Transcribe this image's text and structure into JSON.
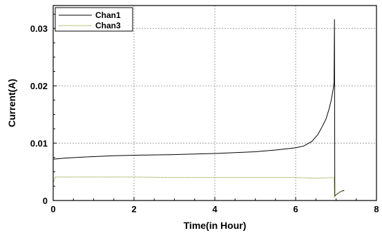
{
  "chart_data": {
    "type": "line",
    "title": "",
    "xlabel": "Time(in Hour)",
    "ylabel": "Current(A)",
    "xlim": [
      0,
      8
    ],
    "ylim": [
      0,
      0.034
    ],
    "xticks": [
      0,
      2,
      4,
      6,
      8
    ],
    "yticks": [
      0,
      0.01,
      0.02,
      0.03
    ],
    "xtick_labels": [
      "0",
      "2",
      "4",
      "6",
      "8"
    ],
    "ytick_labels": [
      "0",
      "0.01",
      "0.02",
      "0.03"
    ],
    "grid": true,
    "legend_position": "top-left",
    "series": [
      {
        "name": "Chan1",
        "color": "#000000",
        "x": [
          0,
          0.3,
          0.8,
          1.5,
          2.0,
          3.0,
          4.0,
          5.0,
          5.5,
          6.0,
          6.2,
          6.4,
          6.55,
          6.65,
          6.75,
          6.82,
          6.88,
          6.93,
          6.95,
          6.96,
          6.97,
          7.0,
          7.1,
          7.2
        ],
        "y": [
          0.0072,
          0.0074,
          0.0076,
          0.0078,
          0.0079,
          0.008,
          0.0082,
          0.0085,
          0.0088,
          0.0092,
          0.0095,
          0.0103,
          0.0115,
          0.0128,
          0.0142,
          0.0158,
          0.0175,
          0.0195,
          0.0205,
          0.0316,
          0.0008,
          0.001,
          0.0015,
          0.0018
        ]
      },
      {
        "name": "Chan3",
        "color": "#8c9a2e",
        "x": [
          0,
          0.05,
          1,
          2,
          3,
          4,
          5,
          6,
          6.5,
          6.95,
          6.96,
          7.0,
          7.1,
          7.2
        ],
        "y": [
          0.003,
          0.0041,
          0.0041,
          0.0041,
          0.004,
          0.004,
          0.004,
          0.004,
          0.0039,
          0.004,
          0.0006,
          0.001,
          0.0015,
          0.0017
        ]
      }
    ]
  }
}
